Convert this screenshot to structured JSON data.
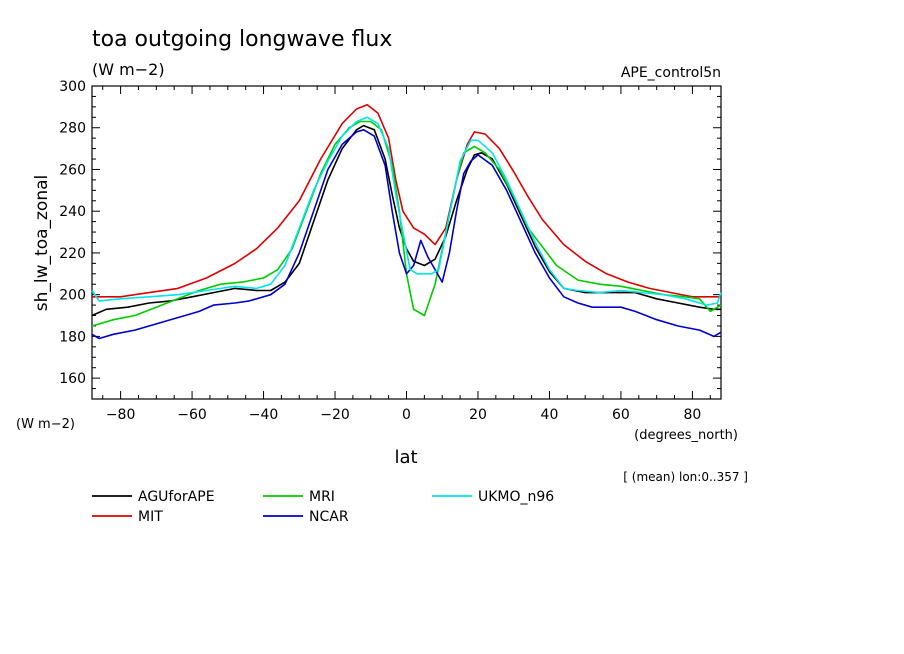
{
  "chart_data": {
    "type": "line",
    "title": "toa outgoing longwave flux",
    "subtitle": "(W m−2)",
    "experiment": "APE_control5n",
    "ylabel": "sh_lw_toa_zonal",
    "yunit": "(W m−2)",
    "xlabel": "lat",
    "xunit": "(degrees_north)",
    "note": "[ (mean) lon:0..357 ]",
    "xlim": [
      -88,
      88
    ],
    "ylim": [
      150,
      300
    ],
    "xticks": [
      -80,
      -60,
      -40,
      -20,
      0,
      20,
      40,
      60,
      80
    ],
    "yticks": [
      160,
      180,
      200,
      220,
      240,
      260,
      280,
      300
    ],
    "grid": false,
    "legend_position": "bottom",
    "series": [
      {
        "name": "AGUforAPE",
        "color": "#000000",
        "points": [
          [
            -88,
            190
          ],
          [
            -84,
            193
          ],
          [
            -78,
            194
          ],
          [
            -72,
            196
          ],
          [
            -66,
            197
          ],
          [
            -60,
            199
          ],
          [
            -54,
            201
          ],
          [
            -48,
            203
          ],
          [
            -42,
            202
          ],
          [
            -38,
            202
          ],
          [
            -34,
            206
          ],
          [
            -30,
            215
          ],
          [
            -26,
            235
          ],
          [
            -22,
            255
          ],
          [
            -18,
            270
          ],
          [
            -14,
            279
          ],
          [
            -12,
            281
          ],
          [
            -9,
            279
          ],
          [
            -6,
            265
          ],
          [
            -4,
            248
          ],
          [
            -2,
            232
          ],
          [
            0,
            222
          ],
          [
            2,
            216
          ],
          [
            5,
            214
          ],
          [
            8,
            217
          ],
          [
            11,
            228
          ],
          [
            14,
            245
          ],
          [
            17,
            260
          ],
          [
            19,
            267
          ],
          [
            21,
            268
          ],
          [
            24,
            265
          ],
          [
            28,
            253
          ],
          [
            32,
            238
          ],
          [
            36,
            223
          ],
          [
            40,
            211
          ],
          [
            44,
            203
          ],
          [
            50,
            201
          ],
          [
            56,
            201
          ],
          [
            60,
            201
          ],
          [
            64,
            201
          ],
          [
            70,
            198
          ],
          [
            76,
            196
          ],
          [
            82,
            194
          ],
          [
            86,
            193
          ],
          [
            88,
            193
          ]
        ]
      },
      {
        "name": "MIT",
        "color": "#dd0000",
        "points": [
          [
            -88,
            199
          ],
          [
            -80,
            199
          ],
          [
            -72,
            201
          ],
          [
            -64,
            203
          ],
          [
            -56,
            208
          ],
          [
            -48,
            215
          ],
          [
            -42,
            222
          ],
          [
            -36,
            232
          ],
          [
            -30,
            245
          ],
          [
            -24,
            265
          ],
          [
            -18,
            282
          ],
          [
            -14,
            289
          ],
          [
            -11,
            291
          ],
          [
            -8,
            287
          ],
          [
            -5,
            275
          ],
          [
            -3,
            255
          ],
          [
            -1,
            240
          ],
          [
            2,
            232
          ],
          [
            5,
            229
          ],
          [
            8,
            224
          ],
          [
            11,
            232
          ],
          [
            14,
            255
          ],
          [
            17,
            272
          ],
          [
            19,
            278
          ],
          [
            22,
            277
          ],
          [
            26,
            270
          ],
          [
            30,
            259
          ],
          [
            34,
            247
          ],
          [
            38,
            236
          ],
          [
            44,
            224
          ],
          [
            50,
            216
          ],
          [
            56,
            210
          ],
          [
            62,
            206
          ],
          [
            68,
            203
          ],
          [
            74,
            201
          ],
          [
            80,
            199
          ],
          [
            86,
            199
          ],
          [
            88,
            199
          ]
        ]
      },
      {
        "name": "MRI",
        "color": "#00cc00",
        "points": [
          [
            -88,
            185
          ],
          [
            -82,
            188
          ],
          [
            -76,
            190
          ],
          [
            -70,
            194
          ],
          [
            -64,
            198
          ],
          [
            -58,
            202
          ],
          [
            -52,
            205
          ],
          [
            -46,
            206
          ],
          [
            -40,
            208
          ],
          [
            -36,
            212
          ],
          [
            -32,
            222
          ],
          [
            -28,
            240
          ],
          [
            -24,
            258
          ],
          [
            -20,
            272
          ],
          [
            -16,
            280
          ],
          [
            -13,
            283
          ],
          [
            -10,
            283
          ],
          [
            -7,
            279
          ],
          [
            -4,
            262
          ],
          [
            -2,
            240
          ],
          [
            0,
            210
          ],
          [
            2,
            193
          ],
          [
            5,
            190
          ],
          [
            8,
            205
          ],
          [
            11,
            230
          ],
          [
            14,
            255
          ],
          [
            16,
            268
          ],
          [
            19,
            271
          ],
          [
            22,
            268
          ],
          [
            26,
            260
          ],
          [
            30,
            247
          ],
          [
            34,
            232
          ],
          [
            38,
            223
          ],
          [
            42,
            214
          ],
          [
            48,
            207
          ],
          [
            54,
            205
          ],
          [
            60,
            204
          ],
          [
            66,
            202
          ],
          [
            72,
            200
          ],
          [
            78,
            199
          ],
          [
            82,
            198
          ],
          [
            85,
            192
          ],
          [
            88,
            195
          ]
        ]
      },
      {
        "name": "NCAR",
        "color": "#0000cc",
        "points": [
          [
            -88,
            181
          ],
          [
            -86,
            179
          ],
          [
            -82,
            181
          ],
          [
            -76,
            183
          ],
          [
            -70,
            186
          ],
          [
            -64,
            189
          ],
          [
            -58,
            192
          ],
          [
            -54,
            195
          ],
          [
            -48,
            196
          ],
          [
            -44,
            197
          ],
          [
            -38,
            200
          ],
          [
            -34,
            205
          ],
          [
            -30,
            220
          ],
          [
            -26,
            240
          ],
          [
            -22,
            260
          ],
          [
            -18,
            272
          ],
          [
            -14,
            278
          ],
          [
            -12,
            279
          ],
          [
            -9,
            276
          ],
          [
            -6,
            262
          ],
          [
            -4,
            240
          ],
          [
            -2,
            220
          ],
          [
            0,
            210
          ],
          [
            2,
            214
          ],
          [
            4,
            226
          ],
          [
            6,
            218
          ],
          [
            8,
            212
          ],
          [
            10,
            206
          ],
          [
            12,
            220
          ],
          [
            14,
            240
          ],
          [
            16,
            258
          ],
          [
            18,
            264
          ],
          [
            20,
            267
          ],
          [
            24,
            262
          ],
          [
            28,
            250
          ],
          [
            32,
            235
          ],
          [
            36,
            220
          ],
          [
            40,
            208
          ],
          [
            44,
            199
          ],
          [
            48,
            196
          ],
          [
            52,
            194
          ],
          [
            56,
            194
          ],
          [
            60,
            194
          ],
          [
            64,
            192
          ],
          [
            70,
            188
          ],
          [
            76,
            185
          ],
          [
            82,
            183
          ],
          [
            86,
            180
          ],
          [
            88,
            182
          ]
        ]
      },
      {
        "name": "UKMO_n96",
        "color": "#00e5ee",
        "points": [
          [
            -88,
            202
          ],
          [
            -86,
            197
          ],
          [
            -80,
            198
          ],
          [
            -72,
            199
          ],
          [
            -64,
            200
          ],
          [
            -56,
            202
          ],
          [
            -48,
            204
          ],
          [
            -42,
            203
          ],
          [
            -38,
            205
          ],
          [
            -34,
            214
          ],
          [
            -30,
            232
          ],
          [
            -26,
            250
          ],
          [
            -22,
            264
          ],
          [
            -18,
            276
          ],
          [
            -14,
            283
          ],
          [
            -11,
            285
          ],
          [
            -8,
            282
          ],
          [
            -5,
            270
          ],
          [
            -3,
            248
          ],
          [
            -1,
            230
          ],
          [
            1,
            212
          ],
          [
            3,
            210
          ],
          [
            5,
            210
          ],
          [
            7,
            210
          ],
          [
            9,
            212
          ],
          [
            12,
            238
          ],
          [
            15,
            264
          ],
          [
            18,
            274
          ],
          [
            20,
            274
          ],
          [
            24,
            268
          ],
          [
            28,
            255
          ],
          [
            32,
            240
          ],
          [
            36,
            225
          ],
          [
            40,
            212
          ],
          [
            44,
            203
          ],
          [
            48,
            202
          ],
          [
            54,
            201
          ],
          [
            60,
            202
          ],
          [
            66,
            201
          ],
          [
            72,
            200
          ],
          [
            78,
            198
          ],
          [
            84,
            195
          ],
          [
            87,
            196
          ],
          [
            88,
            201
          ]
        ]
      }
    ]
  }
}
